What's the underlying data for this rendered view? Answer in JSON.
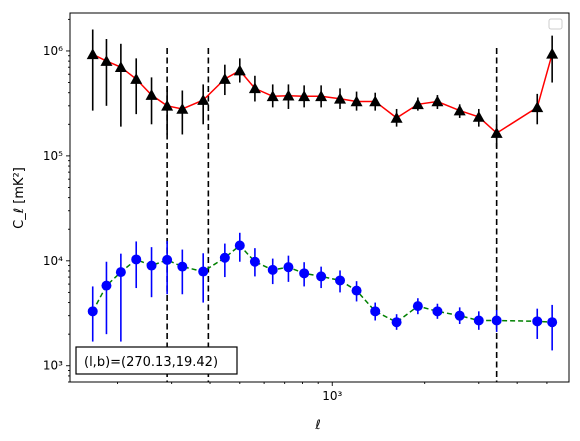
{
  "chart_data": {
    "type": "scatter",
    "xlabel": "ℓ",
    "ylabel": "C_ℓ  [mK²]",
    "xscale": "log",
    "yscale": "log",
    "xlim": [
      140,
      5900
    ],
    "ylim": [
      700,
      2300000
    ],
    "x_tick_labels": [
      {
        "value": 1000,
        "label": "10³"
      }
    ],
    "y_tick_labels": [
      {
        "value": 1000,
        "label": "10³"
      },
      {
        "value": 10000,
        "label": "10⁴"
      },
      {
        "value": 100000,
        "label": "10⁵"
      },
      {
        "value": 1000000,
        "label": "10⁶"
      }
    ],
    "grid": false,
    "legend": "top-right (empty)",
    "annotation": "(l,b)=(270.13,19.42)",
    "vlines": [
      290,
      395,
      3430
    ],
    "series": [
      {
        "marker": "triangle",
        "color": "#000000",
        "line_color": "#ff0000",
        "line_style": "solid",
        "points": [
          {
            "x": 166,
            "y": 930000,
            "lo": 270000,
            "hi": 1600000
          },
          {
            "x": 184,
            "y": 800000,
            "lo": 300000,
            "hi": 1300000
          },
          {
            "x": 205,
            "y": 700000,
            "lo": 190000,
            "hi": 1170000
          },
          {
            "x": 230,
            "y": 540000,
            "lo": 250000,
            "hi": 850000
          },
          {
            "x": 258,
            "y": 380000,
            "lo": 200000,
            "hi": 560000
          },
          {
            "x": 290,
            "y": 300000,
            "lo": 160000,
            "hi": 460000
          },
          {
            "x": 325,
            "y": 280000,
            "lo": 160000,
            "hi": 420000
          },
          {
            "x": 380,
            "y": 340000,
            "lo": 200000,
            "hi": 480000
          },
          {
            "x": 447,
            "y": 540000,
            "lo": 380000,
            "hi": 740000
          },
          {
            "x": 500,
            "y": 650000,
            "lo": 500000,
            "hi": 850000
          },
          {
            "x": 560,
            "y": 440000,
            "lo": 330000,
            "hi": 580000
          },
          {
            "x": 640,
            "y": 370000,
            "lo": 290000,
            "hi": 480000
          },
          {
            "x": 720,
            "y": 375000,
            "lo": 280000,
            "hi": 480000
          },
          {
            "x": 810,
            "y": 370000,
            "lo": 290000,
            "hi": 470000
          },
          {
            "x": 920,
            "y": 370000,
            "lo": 290000,
            "hi": 470000
          },
          {
            "x": 1060,
            "y": 350000,
            "lo": 280000,
            "hi": 440000
          },
          {
            "x": 1200,
            "y": 330000,
            "lo": 270000,
            "hi": 410000
          },
          {
            "x": 1380,
            "y": 330000,
            "lo": 270000,
            "hi": 400000
          },
          {
            "x": 1620,
            "y": 230000,
            "lo": 190000,
            "hi": 280000
          },
          {
            "x": 1900,
            "y": 310000,
            "lo": 270000,
            "hi": 360000
          },
          {
            "x": 2200,
            "y": 330000,
            "lo": 280000,
            "hi": 380000
          },
          {
            "x": 2600,
            "y": 270000,
            "lo": 230000,
            "hi": 310000
          },
          {
            "x": 3000,
            "y": 235000,
            "lo": 190000,
            "hi": 280000
          },
          {
            "x": 3430,
            "y": 165000,
            "lo": 120000,
            "hi": 220000
          },
          {
            "x": 4650,
            "y": 290000,
            "lo": 200000,
            "hi": 390000
          },
          {
            "x": 5200,
            "y": 940000,
            "lo": 500000,
            "hi": 1400000
          }
        ]
      },
      {
        "marker": "circle",
        "color": "#0000ff",
        "line_color": "#008000",
        "line_style": "dashed",
        "points": [
          {
            "x": 166,
            "y": 3300,
            "lo": 1700,
            "hi": 5700
          },
          {
            "x": 184,
            "y": 5800,
            "lo": 2000,
            "hi": 9800
          },
          {
            "x": 205,
            "y": 7800,
            "lo": 1700,
            "hi": 11700
          },
          {
            "x": 230,
            "y": 10300,
            "lo": 5500,
            "hi": 15300
          },
          {
            "x": 258,
            "y": 9000,
            "lo": 4500,
            "hi": 13500
          },
          {
            "x": 290,
            "y": 10200,
            "lo": 4800,
            "hi": 15500
          },
          {
            "x": 325,
            "y": 8800,
            "lo": 4800,
            "hi": 12800
          },
          {
            "x": 380,
            "y": 7900,
            "lo": 4000,
            "hi": 11800
          },
          {
            "x": 447,
            "y": 10700,
            "lo": 7000,
            "hi": 14600
          },
          {
            "x": 500,
            "y": 14000,
            "lo": 9800,
            "hi": 18500
          },
          {
            "x": 560,
            "y": 9800,
            "lo": 7100,
            "hi": 13200
          },
          {
            "x": 640,
            "y": 8200,
            "lo": 6000,
            "hi": 10500
          },
          {
            "x": 720,
            "y": 8700,
            "lo": 6300,
            "hi": 11200
          },
          {
            "x": 810,
            "y": 7600,
            "lo": 5700,
            "hi": 9700
          },
          {
            "x": 920,
            "y": 7100,
            "lo": 5500,
            "hi": 8800
          },
          {
            "x": 1060,
            "y": 6500,
            "lo": 5000,
            "hi": 8100
          },
          {
            "x": 1200,
            "y": 5200,
            "lo": 4100,
            "hi": 6400
          },
          {
            "x": 1380,
            "y": 3300,
            "lo": 2700,
            "hi": 4000
          },
          {
            "x": 1620,
            "y": 2600,
            "lo": 2200,
            "hi": 3100
          },
          {
            "x": 1900,
            "y": 3700,
            "lo": 3100,
            "hi": 4400
          },
          {
            "x": 2200,
            "y": 3300,
            "lo": 2800,
            "hi": 3900
          },
          {
            "x": 2600,
            "y": 3000,
            "lo": 2500,
            "hi": 3600
          },
          {
            "x": 3000,
            "y": 2700,
            "lo": 2200,
            "hi": 3300
          },
          {
            "x": 3430,
            "y": 2700,
            "lo": 2100,
            "hi": 3400
          },
          {
            "x": 4650,
            "y": 2650,
            "lo": 1800,
            "hi": 3500
          },
          {
            "x": 5200,
            "y": 2600,
            "lo": 1400,
            "hi": 3800
          }
        ]
      }
    ]
  }
}
